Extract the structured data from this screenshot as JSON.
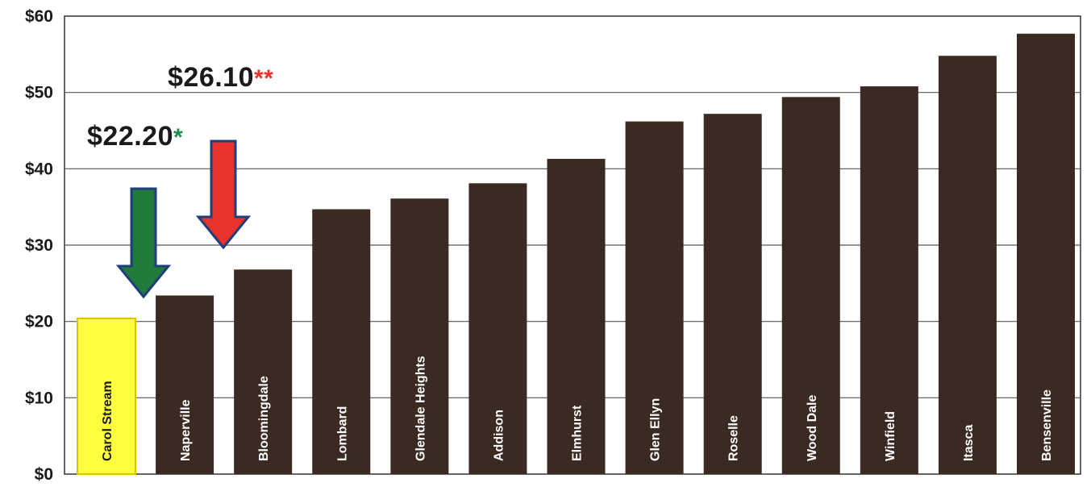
{
  "chart_data": {
    "type": "bar",
    "categories": [
      "Carol Stream",
      "Naperville",
      "Bloomingdale",
      "Lombard",
      "Glendale Heights",
      "Addison",
      "Elmhurst",
      "Glen Ellyn",
      "Roselle",
      "Wood Dale",
      "Winfield",
      "Itasca",
      "Bensenville"
    ],
    "values": [
      20.4,
      23.4,
      26.8,
      34.7,
      36.1,
      38.1,
      41.3,
      46.2,
      47.2,
      49.4,
      50.8,
      54.8,
      57.7
    ],
    "highlight_index": 0,
    "ylim": [
      0,
      60
    ],
    "yticks": [
      0,
      10,
      20,
      30,
      40,
      50,
      60
    ],
    "ytick_labels": [
      "$0",
      "$10",
      "$20",
      "$30",
      "$40",
      "$50",
      "$60"
    ],
    "grid": true,
    "title": "",
    "xlabel": "",
    "ylabel": ""
  },
  "annotations": {
    "green": {
      "value_text": "$22.20",
      "mark": "*",
      "target_index": 1,
      "value": 22.2
    },
    "red": {
      "value_text": "$26.10",
      "mark": "**",
      "target_index": 2,
      "value": 26.1
    }
  },
  "colors": {
    "bar": "#3a2a21",
    "highlight_bar": "#ffff40",
    "highlight_border": "#e0c000",
    "grid": "#555555",
    "axis": "#333333",
    "green_arrow": "#1f7a3c",
    "red_arrow": "#e8322a",
    "arrow_border": "#1e3f7a",
    "green_mark": "#1f8a4a",
    "red_mark": "#e8322a"
  }
}
